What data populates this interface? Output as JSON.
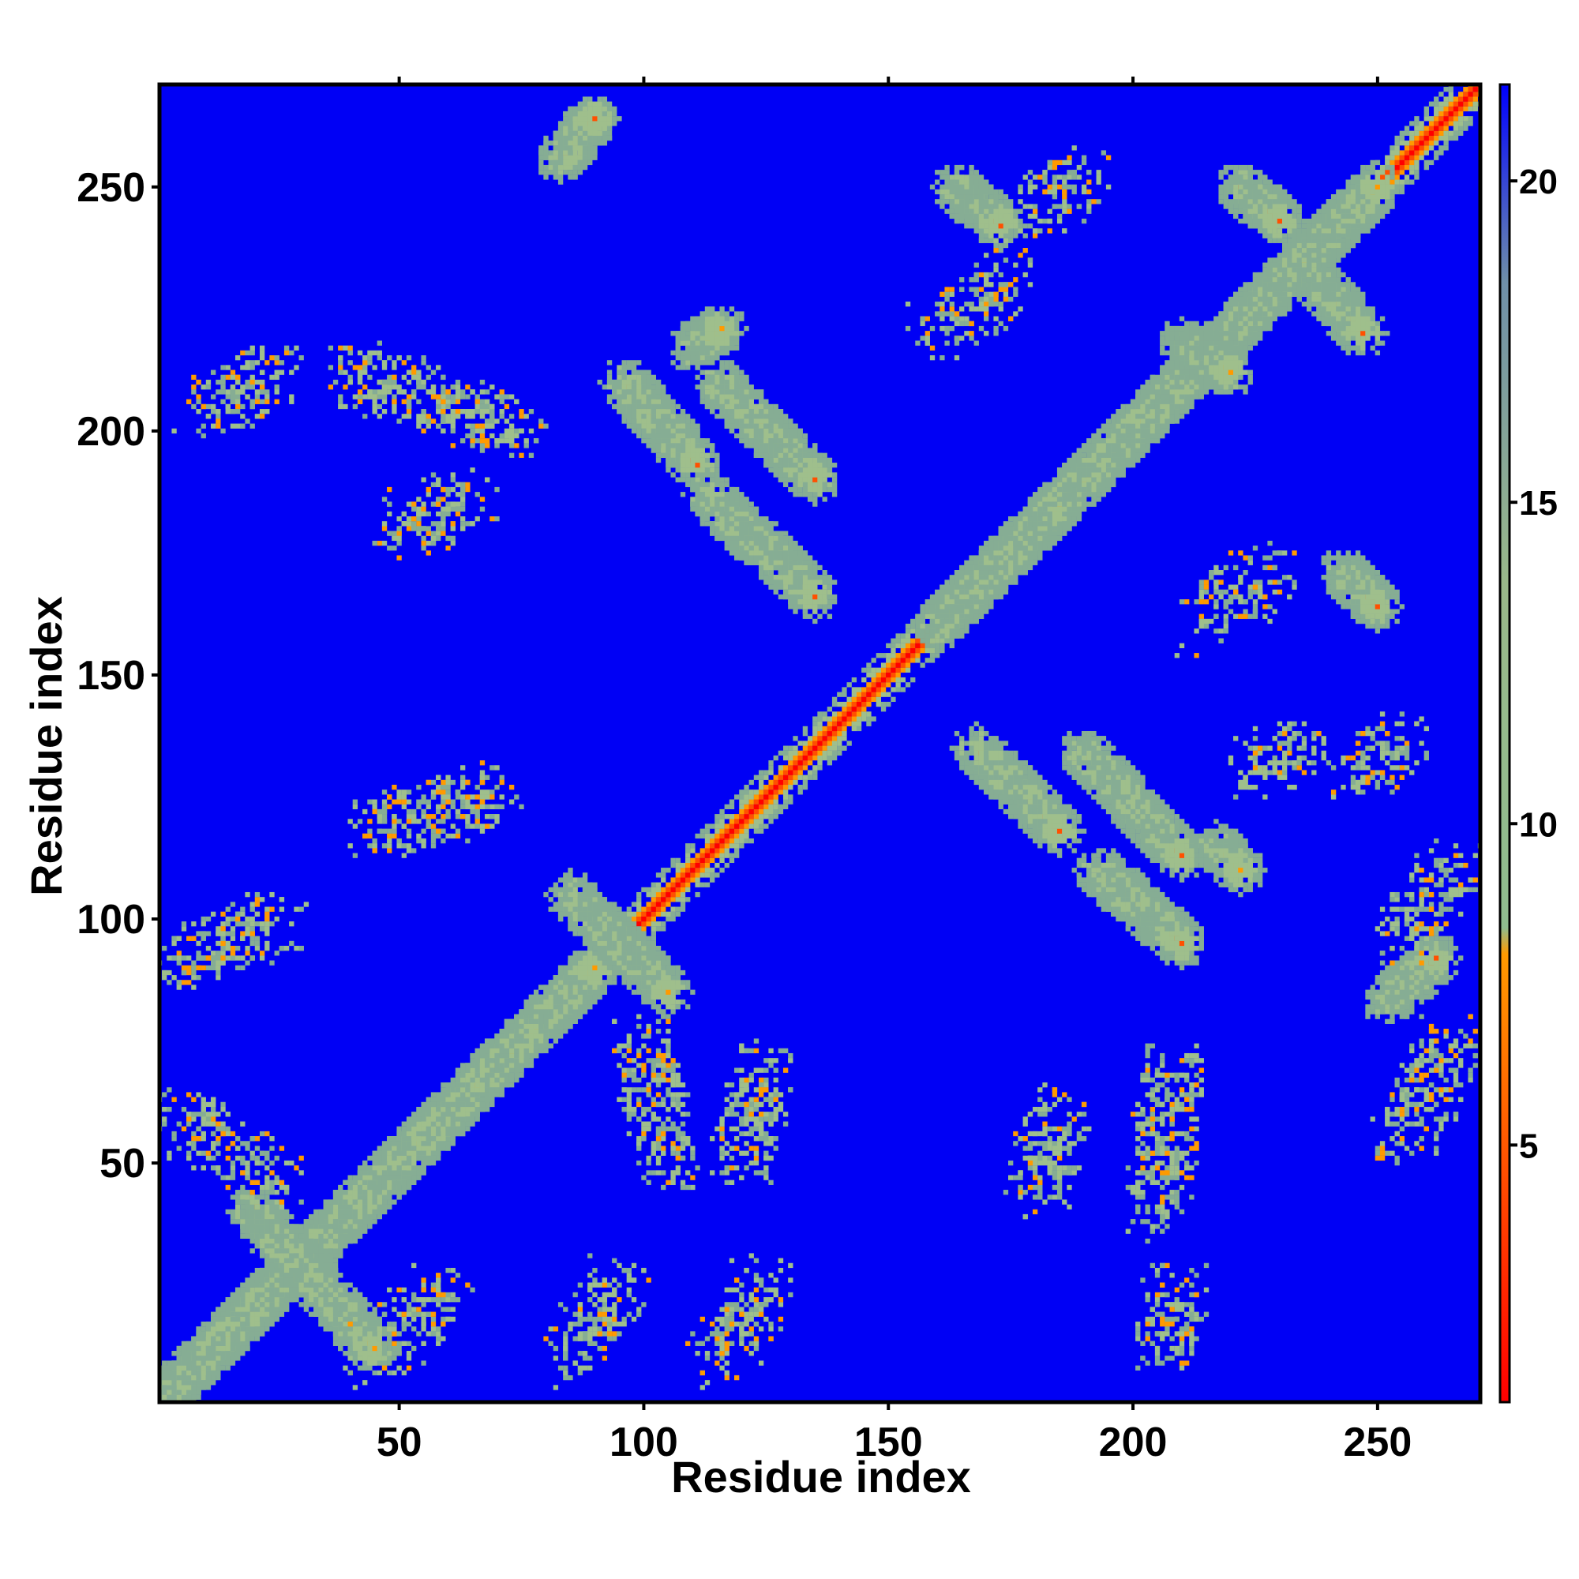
{
  "chart_data": {
    "type": "heatmap",
    "title": "",
    "xlabel": "Residue index",
    "ylabel": "Residue index",
    "xlim": [
      1,
      271
    ],
    "ylim": [
      1,
      271
    ],
    "x_ticks": [
      50,
      100,
      150,
      200,
      250
    ],
    "y_ticks": [
      50,
      100,
      150,
      200,
      250
    ],
    "grid": false,
    "colorbar": {
      "range": [
        1,
        21.5
      ],
      "ticks": [
        5,
        10,
        15,
        20
      ],
      "colors": [
        "#ff0000",
        "#ff7f00",
        "#8fbc8f",
        "#0000ff"
      ]
    },
    "background_value": 21.5,
    "diagonal_value": 2,
    "contact_bands": [
      {
        "x": [
          1,
          40
        ],
        "y": [
          1,
          40
        ],
        "type": "parallel",
        "value": 6
      },
      {
        "x": [
          40,
          90
        ],
        "y": [
          40,
          90
        ],
        "type": "parallel",
        "value": 6
      },
      {
        "x": [
          160,
          250
        ],
        "y": [
          160,
          250
        ],
        "type": "parallel",
        "value": 7
      },
      {
        "x": [
          20,
          45
        ],
        "y": [
          40,
          12
        ],
        "type": "antiparallel",
        "value": 8
      },
      {
        "x": [
          85,
          105
        ],
        "y": [
          105,
          85
        ],
        "type": "antiparallel",
        "value": 6
      },
      {
        "x": [
          168,
          185
        ],
        "y": [
          135,
          118
        ],
        "type": "antiparallel",
        "value": 5
      },
      {
        "x": [
          190,
          210
        ],
        "y": [
          134,
          113
        ],
        "type": "antiparallel",
        "value": 5
      },
      {
        "x": [
          193,
          210
        ],
        "y": [
          110,
          95
        ],
        "type": "antiparallel",
        "value": 5
      },
      {
        "x": [
          217,
          222
        ],
        "y": [
          115,
          110
        ],
        "type": "antiparallel",
        "value": 6
      },
      {
        "x": [
          96,
          111
        ],
        "y": [
          210,
          193
        ],
        "type": "antiparallel",
        "value": 5
      },
      {
        "x": [
          115,
          135
        ],
        "y": [
          210,
          190
        ],
        "type": "antiparallel",
        "value": 5
      },
      {
        "x": [
          113,
          135
        ],
        "y": [
          187,
          166
        ],
        "type": "antiparallel",
        "value": 5
      },
      {
        "x": [
          222,
          230
        ],
        "y": [
          250,
          243
        ],
        "type": "antiparallel",
        "value": 5
      },
      {
        "x": [
          238,
          247
        ],
        "y": [
          230,
          220
        ],
        "type": "antiparallel",
        "value": 5
      },
      {
        "x": [
          164,
          173
        ],
        "y": [
          250,
          242
        ],
        "type": "antiparallel",
        "value": 5
      },
      {
        "x": [
          243,
          250
        ],
        "y": [
          171,
          164
        ],
        "type": "antiparallel",
        "value": 5
      },
      {
        "x": [
          83,
          90
        ],
        "y": [
          256,
          264
        ],
        "type": "parallel",
        "value": 5
      },
      {
        "x": [
          252,
          262
        ],
        "y": [
          83,
          92
        ],
        "type": "parallel",
        "value": 5
      },
      {
        "x": [
          110,
          116
        ],
        "y": [
          217,
          221
        ],
        "type": "parallel",
        "value": 6
      },
      {
        "x": [
          210,
          220
        ],
        "y": [
          218,
          212
        ],
        "type": "antiparallel",
        "value": 6
      }
    ],
    "contact_clouds": [
      {
        "x": [
          5,
          25
        ],
        "y": [
          60,
          45
        ],
        "value": 10
      },
      {
        "x": [
          10,
          25
        ],
        "y": [
          205,
          212
        ],
        "value": 11
      },
      {
        "x": [
          40,
          75
        ],
        "y": [
          212,
          200
        ],
        "value": 11
      },
      {
        "x": [
          5,
          25
        ],
        "y": [
          90,
          100
        ],
        "value": 10
      },
      {
        "x": [
          45,
          70
        ],
        "y": [
          118,
          126
        ],
        "value": 11
      },
      {
        "x": [
          50,
          65
        ],
        "y": [
          180,
          186
        ],
        "value": 11
      },
      {
        "x": [
          85,
          95
        ],
        "y": [
          10,
          25
        ],
        "value": 10
      },
      {
        "x": [
          115,
          125
        ],
        "y": [
          10,
          25
        ],
        "value": 11
      },
      {
        "x": [
          105,
          100
        ],
        "y": [
          50,
          75
        ],
        "value": 10
      },
      {
        "x": [
          120,
          125
        ],
        "y": [
          50,
          70
        ],
        "value": 10
      },
      {
        "x": [
          180,
          185
        ],
        "y": [
          45,
          60
        ],
        "value": 10
      },
      {
        "x": [
          205,
          210
        ],
        "y": [
          12,
          25
        ],
        "value": 10
      },
      {
        "x": [
          205,
          208
        ],
        "y": [
          40,
          70
        ],
        "value": 11
      },
      {
        "x": [
          215,
          228
        ],
        "y": [
          160,
          172
        ],
        "value": 11
      },
      {
        "x": [
          160,
          175
        ],
        "y": [
          220,
          232
        ],
        "value": 11
      },
      {
        "x": [
          180,
          190
        ],
        "y": [
          245,
          252
        ],
        "value": 12
      },
      {
        "x": [
          225,
          235
        ],
        "y": [
          130,
          136
        ],
        "value": 11
      },
      {
        "x": [
          245,
          255
        ],
        "y": [
          130,
          136
        ],
        "value": 12
      },
      {
        "x": [
          255,
          265
        ],
        "y": [
          95,
          110
        ],
        "value": 11
      },
      {
        "x": [
          255,
          265
        ],
        "y": [
          55,
          75
        ],
        "value": 11
      },
      {
        "x": [
          45,
          60
        ],
        "y": [
          10,
          25
        ],
        "value": 10
      }
    ]
  }
}
